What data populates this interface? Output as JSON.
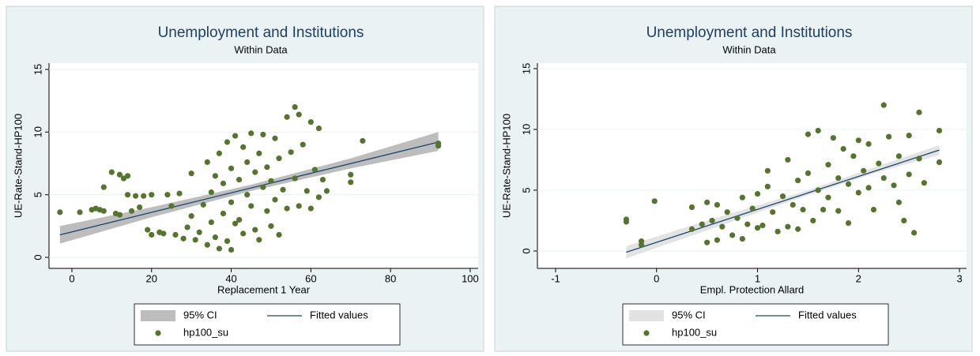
{
  "chart_data": [
    {
      "type": "scatter",
      "title": "Unemployment and Institutions",
      "subtitle": "Within Data",
      "x_label": "Replacement 1 Year",
      "y_label": "UE-Rate-Stand-HP100",
      "xlim": [
        -5.75,
        102
      ],
      "ylim": [
        -0.88,
        15.5
      ],
      "xticks": [
        0,
        20,
        40,
        60,
        80,
        100
      ],
      "yticks": [
        0,
        5,
        10,
        15
      ],
      "grid": true,
      "series": [
        {
          "name": "95% CI",
          "type": "area",
          "color": "#bdbdbd",
          "x": [
            -3,
            20,
            45,
            70,
            92
          ],
          "lower": [
            1.1,
            3.2,
            5.3,
            7.1,
            8.5
          ],
          "upper": [
            2.5,
            4.0,
            5.8,
            7.9,
            10.0
          ]
        },
        {
          "name": "Fitted values",
          "type": "line",
          "color": "#1a476f",
          "x": [
            -3,
            92
          ],
          "values": [
            1.8,
            9.2
          ]
        },
        {
          "name": "hp100_su",
          "type": "scatter",
          "color": "#55752f",
          "x": [
            -3,
            2,
            5,
            6,
            7,
            8,
            8,
            10,
            11,
            12,
            12,
            13,
            14,
            14,
            15,
            16,
            17,
            18,
            19,
            20,
            20,
            22,
            23,
            24,
            25,
            26,
            27,
            28,
            29,
            30,
            30,
            31,
            32,
            33,
            34,
            34,
            35,
            35,
            36,
            36,
            37,
            37,
            38,
            38,
            39,
            39,
            40,
            40,
            40,
            41,
            41,
            42,
            42,
            43,
            43,
            44,
            44,
            45,
            45,
            46,
            46,
            47,
            47,
            48,
            48,
            49,
            49,
            50,
            50,
            51,
            51,
            52,
            52,
            53,
            54,
            54,
            55,
            56,
            56,
            57,
            57,
            58,
            59,
            60,
            60,
            61,
            62,
            62,
            63,
            64,
            70,
            70,
            73,
            92,
            92
          ],
          "values": [
            3.6,
            3.6,
            3.8,
            3.9,
            3.8,
            3.7,
            5.6,
            6.8,
            3.5,
            3.4,
            6.6,
            6.3,
            5.0,
            6.5,
            3.7,
            4.9,
            4.0,
            4.9,
            2.2,
            1.8,
            5.0,
            2.0,
            1.9,
            5.0,
            4.1,
            1.8,
            5.1,
            1.5,
            2.4,
            3.3,
            6.7,
            1.4,
            2.0,
            4.2,
            7.6,
            1.0,
            5.2,
            2.8,
            1.6,
            6.5,
            0.7,
            8.3,
            3.5,
            5.9,
            9.2,
            1.3,
            0.6,
            4.4,
            7.1,
            2.7,
            9.7,
            6.2,
            3.0,
            8.8,
            1.9,
            5.0,
            7.6,
            4.1,
            9.9,
            2.2,
            6.8,
            8.3,
            1.4,
            5.6,
            9.8,
            3.7,
            7.2,
            6.1,
            2.5,
            9.5,
            4.6,
            1.8,
            7.9,
            5.4,
            11.2,
            3.9,
            8.4,
            12.0,
            6.3,
            11.4,
            4.1,
            9.0,
            5.3,
            10.8,
            3.9,
            7.0,
            10.3,
            4.8,
            6.2,
            5.3,
            6.0,
            6.6,
            9.3,
            8.9,
            9.1
          ]
        }
      ]
    },
    {
      "type": "scatter",
      "title": "Unemployment and Institutions",
      "subtitle": "Within Data",
      "x_label": "Empl. Protection Allard",
      "y_label": "UE-Rate-Stand-HP100",
      "xlim": [
        -1.18,
        3.07
      ],
      "ylim": [
        -1.43,
        15.45
      ],
      "xticks": [
        -1,
        0,
        1,
        2,
        3
      ],
      "yticks": [
        0,
        5,
        10,
        15
      ],
      "grid": true,
      "series": [
        {
          "name": "95% CI",
          "type": "area",
          "color": "#e3e3e3",
          "x": [
            -0.3,
            0.5,
            1.5,
            2.2,
            2.8
          ],
          "lower": [
            -0.6,
            1.7,
            4.6,
            6.5,
            7.9
          ],
          "upper": [
            0.4,
            2.5,
            5.0,
            7.0,
            8.7
          ]
        },
        {
          "name": "Fitted values",
          "type": "line",
          "color": "#1a476f",
          "x": [
            -0.3,
            2.8
          ],
          "values": [
            -0.1,
            8.3
          ]
        },
        {
          "name": "hp100_su",
          "type": "scatter",
          "color": "#55752f",
          "x": [
            -0.3,
            -0.3,
            -0.15,
            -0.15,
            -0.02,
            0.35,
            0.35,
            0.45,
            0.5,
            0.5,
            0.55,
            0.6,
            0.6,
            0.65,
            0.7,
            0.75,
            0.8,
            0.85,
            0.85,
            0.9,
            0.95,
            1.0,
            1.0,
            1.05,
            1.1,
            1.1,
            1.15,
            1.2,
            1.25,
            1.3,
            1.3,
            1.35,
            1.4,
            1.4,
            1.45,
            1.5,
            1.5,
            1.55,
            1.6,
            1.6,
            1.65,
            1.7,
            1.7,
            1.75,
            1.8,
            1.8,
            1.85,
            1.9,
            1.9,
            1.95,
            2.0,
            2.0,
            2.05,
            2.1,
            2.1,
            2.15,
            2.2,
            2.25,
            2.25,
            2.3,
            2.35,
            2.4,
            2.4,
            2.45,
            2.5,
            2.5,
            2.55,
            2.6,
            2.6,
            2.65,
            2.8,
            2.8
          ],
          "values": [
            2.4,
            2.6,
            0.5,
            0.8,
            4.1,
            1.8,
            3.6,
            2.2,
            0.7,
            4.0,
            2.5,
            0.9,
            3.8,
            2.0,
            3.2,
            1.3,
            2.7,
            4.4,
            1.0,
            2.2,
            3.5,
            1.9,
            4.7,
            2.1,
            6.6,
            5.3,
            3.2,
            1.6,
            4.5,
            2.0,
            7.5,
            3.8,
            5.8,
            1.8,
            3.4,
            6.4,
            9.6,
            2.5,
            9.9,
            5.0,
            3.4,
            7.1,
            4.4,
            9.3,
            6.0,
            3.3,
            8.4,
            5.5,
            2.3,
            7.8,
            9.1,
            4.8,
            6.6,
            8.8,
            5.2,
            3.4,
            7.2,
            12.0,
            6.0,
            9.4,
            5.4,
            4.0,
            7.8,
            2.5,
            9.5,
            6.3,
            1.5,
            11.4,
            7.6,
            5.6,
            9.9,
            7.3
          ]
        }
      ]
    }
  ]
}
